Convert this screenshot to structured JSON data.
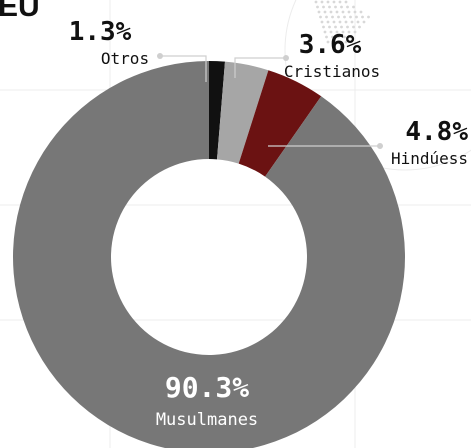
{
  "heading_fragment": "EU",
  "chart_data": {
    "type": "pie",
    "style": "donut",
    "title": "",
    "slices": [
      {
        "label": "Otros",
        "value": 1.3,
        "display": "1.3%",
        "color": "#111111"
      },
      {
        "label": "Cristianos",
        "value": 3.6,
        "display": "3.6%",
        "color": "#a6a6a6"
      },
      {
        "label": "Hindúess",
        "value": 4.8,
        "display": "4.8%",
        "color": "#6b1212"
      },
      {
        "label": "Musulmanes",
        "value": 90.3,
        "display": "90.3%",
        "color": "#777777"
      }
    ]
  }
}
